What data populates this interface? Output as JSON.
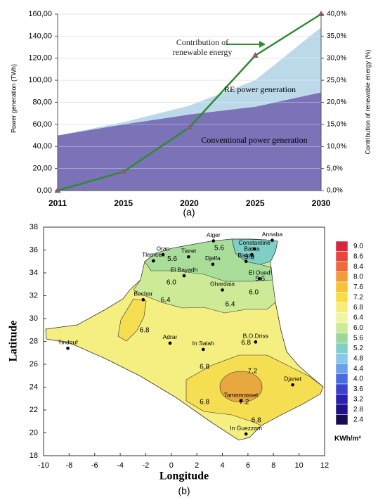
{
  "chart_data": [
    {
      "type": "area-line",
      "panel_label": "(a)",
      "categories": [
        "2011",
        "2015",
        "2020",
        "2025",
        "2030"
      ],
      "ylabel": "Power generation (TWh)",
      "y2label": "Contribution of renewable energy (%)",
      "ylim": [
        0,
        160
      ],
      "yticks": [
        {
          "value": 0,
          "label": "0,00"
        },
        {
          "value": 20,
          "label": "20,00"
        },
        {
          "value": 40,
          "label": "40,00"
        },
        {
          "value": 60,
          "label": "60,00"
        },
        {
          "value": 80,
          "label": "80,00"
        },
        {
          "value": 100,
          "label": "100,00"
        },
        {
          "value": 120,
          "label": "120,00"
        },
        {
          "value": 140,
          "label": "140,00"
        },
        {
          "value": 160,
          "label": "160,00"
        }
      ],
      "y2lim": [
        0,
        40
      ],
      "y2ticks": [
        {
          "value": 0,
          "label": "0,0%"
        },
        {
          "value": 5,
          "label": "5,0%"
        },
        {
          "value": 10,
          "label": "10,0%"
        },
        {
          "value": 15,
          "label": "15,0%"
        },
        {
          "value": 20,
          "label": "20,0%"
        },
        {
          "value": 25,
          "label": "25,0%"
        },
        {
          "value": 30,
          "label": "30,0%"
        },
        {
          "value": 35,
          "label": "35,0%"
        },
        {
          "value": 40,
          "label": "40,0%"
        }
      ],
      "grid": true,
      "series": [
        {
          "name": "Conventional power generation",
          "color": "#7b72b8",
          "values": [
            50,
            60,
            69,
            76,
            89
          ]
        },
        {
          "name": "RE power generation",
          "color": "#bcd9ea",
          "values": [
            0,
            2,
            8,
            24,
            59
          ]
        },
        {
          "name": "Contribution of renewable energy",
          "color": "#2e8b2e",
          "marker_color": "#8b5a7a",
          "axis": "y2",
          "values": [
            0,
            4.3,
            14.3,
            30.6,
            40
          ]
        }
      ]
    },
    {
      "type": "map",
      "panel_label": "(b)",
      "xlabel": "Longitude",
      "ylabel": "Latitude",
      "xlim": [
        -10,
        12
      ],
      "xticks": [
        -10,
        -8,
        -6,
        -4,
        -2,
        0,
        2,
        4,
        6,
        8,
        10,
        12
      ],
      "ylim": [
        18,
        38
      ],
      "yticks": [
        18,
        20,
        22,
        24,
        26,
        28,
        30,
        32,
        34,
        36,
        38
      ],
      "cities": {
        "names": [
          "Alger",
          "Annaba",
          "Constantine",
          "Batna",
          "Biskra",
          "Oran",
          "Tiaret",
          "Tlemcen",
          "Djelfa",
          "El Bayadh",
          "El Oued",
          "Ghardaia",
          "Bechar",
          "Tindouf",
          "Adrar",
          "In Salah",
          "B.O.Driss",
          "Djanet",
          "Tamanrasset",
          "In Guezzam"
        ],
        "x": [
          3.3,
          7.9,
          6.5,
          6.3,
          5.85,
          -0.65,
          1.35,
          -1.4,
          3.25,
          1.0,
          6.9,
          4.0,
          -2.2,
          -8.1,
          -0.1,
          2.5,
          6.6,
          9.5,
          5.45,
          5.85
        ],
        "y": [
          36.8,
          36.85,
          36.1,
          35.6,
          35.0,
          35.6,
          35.4,
          35.05,
          34.75,
          33.75,
          33.5,
          32.5,
          31.65,
          27.4,
          27.85,
          27.3,
          27.95,
          24.2,
          22.8,
          19.9
        ]
      },
      "contour_labels": {
        "values": [
          5.6,
          5.6,
          5.6,
          5.6,
          6.0,
          6.0,
          6.4,
          6.4,
          6.8,
          6.8,
          6.8,
          6.8,
          6.8,
          7.2,
          7.2
        ],
        "value_labels": [
          "5.6",
          "5.6",
          "5.6",
          "5.6",
          "6.0",
          "6.0",
          "6.4",
          "6.4",
          "6.8",
          "6.8",
          "6.8",
          "6.8",
          "6.8",
          "7.2",
          "7.2"
        ],
        "x": [
          0.07,
          3.75,
          6.1,
          6.95,
          0.0,
          6.45,
          -0.45,
          4.6,
          -2.1,
          5.85,
          2.6,
          2.6,
          6.65,
          6.35,
          5.7
        ],
        "y": [
          35.2,
          36.15,
          35.35,
          33.45,
          33.15,
          32.3,
          31.6,
          31.25,
          28.95,
          27.9,
          25.75,
          22.7,
          21.1,
          25.4,
          22.7
        ]
      },
      "colorbar": {
        "levels": [
          {
            "value": 9,
            "label": "9.0"
          },
          8.6,
          8.4,
          {
            "value": 8,
            "label": "8.0"
          },
          7.6,
          7.2,
          6.8,
          6.4,
          {
            "value": 6,
            "label": "6.0"
          },
          5.6,
          5.2,
          4.8,
          4.4,
          {
            "value": 4,
            "label": "4.0"
          },
          3.6,
          3.2,
          2.8,
          2.4
        ],
        "colors": [
          "#d7263d",
          "#e8453c",
          "#ef6a3a",
          "#f39b3a",
          "#f7c23a",
          "#f7dd44",
          "#f5ee7a",
          "#eef6a0",
          "#cdeb96",
          "#9ad89a",
          "#7fd0c8",
          "#88c8ec",
          "#6aa0ee",
          "#4a6ce0",
          "#3a42d0",
          "#2a20b0",
          "#22108a",
          "#1a0a50"
        ],
        "unit": "KWh/m²"
      }
    }
  ]
}
